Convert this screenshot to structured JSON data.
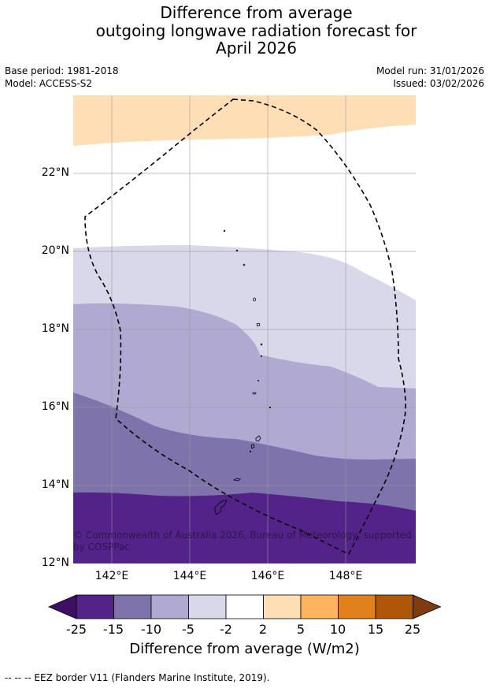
{
  "title": {
    "line1": "Difference from average",
    "line2": "outgoing longwave radiation forecast for",
    "line3": "April 2026"
  },
  "meta": {
    "base_period": "Base period: 1981-2018",
    "model": "Model: ACCESS-S2",
    "model_run": "Model run: 31/01/2026",
    "issued": "Issued: 03/02/2026"
  },
  "map": {
    "lat_labels": [
      "22°N",
      "20°N",
      "18°N",
      "16°N",
      "14°N",
      "12°N"
    ],
    "lon_labels": [
      "142°E",
      "144°E",
      "146°E",
      "148°E"
    ],
    "lat_range": [
      12,
      24.1
    ],
    "lon_range": [
      141,
      149.8
    ],
    "copyright": "© Commonwealth of Australia 2026, Bureau of Meteorology, supported by COSPPac"
  },
  "colorbar": {
    "ticks": [
      "-25",
      "-15",
      "-10",
      "-5",
      "-2",
      "2",
      "5",
      "10",
      "15",
      "25"
    ],
    "colors": [
      "#54238a",
      "#7f73ab",
      "#b0a9d1",
      "#d8d8ea",
      "#ffffff",
      "#fedfb5",
      "#fdb45d",
      "#e0811c",
      "#b05608"
    ],
    "under_color": "#3e0f62",
    "over_color": "#7e3c10",
    "label": "Difference from average (W/m2)"
  },
  "footnote": "--  --  -- EEZ border V11 (Flanders Marine Institute, 2019)."
}
